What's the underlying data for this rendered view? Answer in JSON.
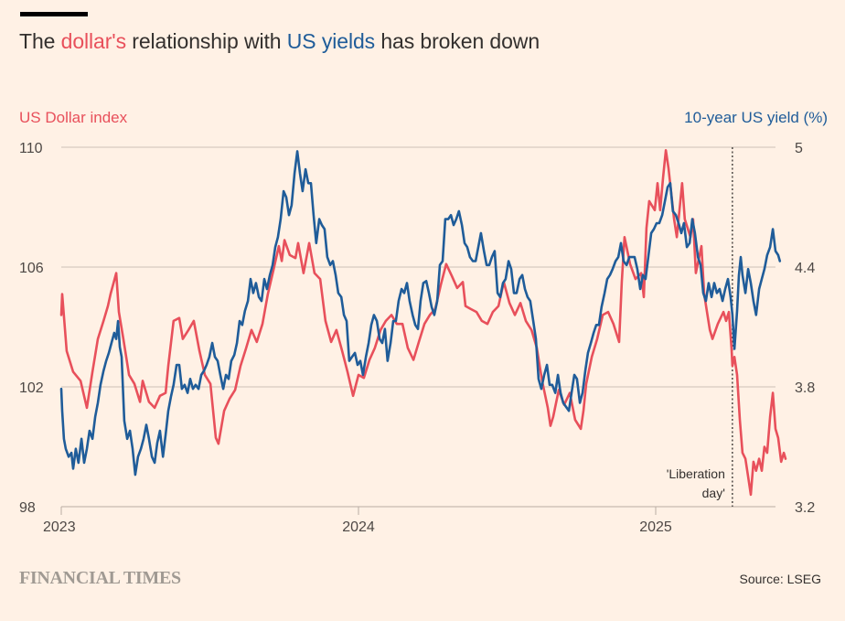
{
  "title": {
    "prefix": "The ",
    "highlight1": "dollar's",
    "middle": " relationship with ",
    "highlight2": "US yields",
    "suffix": " has broken down"
  },
  "footer": {
    "brand": "FINANCIAL TIMES",
    "source": "Source: LSEG"
  },
  "colors": {
    "background": "#FFF1E5",
    "dollar": "#E8505B",
    "yield": "#1F5C99",
    "text": "#33302E",
    "grid": "#CCC1B7"
  },
  "chart_data": {
    "type": "line",
    "title": "The dollar's relationship with US yields has broken down",
    "xlabel": "",
    "x_ticks": [
      "2023",
      "2024",
      "2025"
    ],
    "x_tick_values": [
      2023,
      2024,
      2025
    ],
    "xlim": [
      2023,
      2025.44
    ],
    "y_left": {
      "label": "US Dollar index",
      "ylim": [
        98,
        110
      ],
      "ticks": [
        "110",
        "106",
        "102",
        "98"
      ],
      "tick_values": [
        110,
        106,
        102,
        98
      ]
    },
    "y_right": {
      "label": "10-year US yield (%)",
      "ylim": [
        3.2,
        5
      ],
      "ticks": [
        "5",
        "4.4",
        "3.8",
        "3.2"
      ],
      "tick_values": [
        5,
        4.4,
        3.8,
        3.2
      ]
    },
    "grid": true,
    "annotations": [
      {
        "text_line1": "'Liberation",
        "text_line2": "day'",
        "x": 2025.255,
        "style": "dotted-vertical-line"
      }
    ],
    "series": [
      {
        "name": "US Dollar index",
        "axis": "left",
        "x": [
          2023.0,
          2023.003,
          2023.018,
          2023.04,
          2023.065,
          2023.086,
          2023.105,
          2023.123,
          2023.142,
          2023.157,
          2023.166,
          2023.185,
          2023.194,
          2023.209,
          2023.228,
          2023.246,
          2023.265,
          2023.274,
          2023.295,
          2023.314,
          2023.332,
          2023.351,
          2023.36,
          2023.378,
          2023.397,
          2023.409,
          2023.428,
          2023.446,
          2023.465,
          2023.483,
          2023.502,
          2023.52,
          2023.529,
          2023.548,
          2023.566,
          2023.585,
          2023.603,
          2023.622,
          2023.64,
          2023.658,
          2023.677,
          2023.695,
          2023.714,
          2023.732,
          2023.742,
          2023.751,
          2023.769,
          2023.788,
          2023.797,
          2023.815,
          2023.834,
          2023.852,
          2023.871,
          2023.889,
          2023.908,
          2023.926,
          2023.945,
          2023.963,
          2023.982,
          2024.0,
          2024.018,
          2024.037,
          2024.055,
          2024.074,
          2024.092,
          2024.111,
          2024.129,
          2024.148,
          2024.166,
          2024.185,
          2024.203,
          2024.222,
          2024.24,
          2024.258,
          2024.277,
          2024.295,
          2024.314,
          2024.332,
          2024.351,
          2024.36,
          2024.378,
          2024.397,
          2024.415,
          2024.434,
          2024.452,
          2024.471,
          2024.489,
          2024.508,
          2024.526,
          2024.545,
          2024.563,
          2024.582,
          2024.6,
          2024.618,
          2024.637,
          2024.646,
          2024.655,
          2024.674,
          2024.692,
          2024.711,
          2024.729,
          2024.748,
          2024.757,
          2024.766,
          2024.785,
          2024.803,
          2024.822,
          2024.84,
          2024.858,
          2024.877,
          2024.886,
          2024.895,
          2024.914,
          2024.932,
          2024.951,
          2024.96,
          2024.969,
          2024.978,
          2024.997,
          2025.006,
          2025.015,
          2025.025,
          2025.034,
          2025.043,
          2025.062,
          2025.071,
          2025.089,
          2025.098,
          2025.117,
          2025.126,
          2025.135,
          2025.154,
          2025.163,
          2025.182,
          2025.191,
          2025.209,
          2025.228,
          2025.237,
          2025.246,
          2025.255,
          2025.258,
          2025.265,
          2025.274,
          2025.283,
          2025.292,
          2025.302,
          2025.311,
          2025.32,
          2025.329,
          2025.338,
          2025.348,
          2025.357,
          2025.366,
          2025.375,
          2025.385,
          2025.394,
          2025.403,
          2025.412,
          2025.422,
          2025.431,
          2025.437
        ],
        "values": [
          104.4,
          105.1,
          103.2,
          102.5,
          102.2,
          101.3,
          102.5,
          103.6,
          104.2,
          104.7,
          105.1,
          105.8,
          104.5,
          103.6,
          102.4,
          102.1,
          101.5,
          102.2,
          101.5,
          101.3,
          101.7,
          101.8,
          102.7,
          104.2,
          104.3,
          103.6,
          103.9,
          104.2,
          103.2,
          102.4,
          102.1,
          100.3,
          100.1,
          101.2,
          101.6,
          101.9,
          102.7,
          103.3,
          103.9,
          103.5,
          104.1,
          105.1,
          105.9,
          106.7,
          106.2,
          106.9,
          106.4,
          106.3,
          106.8,
          105.8,
          106.8,
          105.8,
          105.6,
          104.2,
          103.5,
          103.9,
          103.2,
          102.5,
          101.7,
          102.4,
          102.3,
          102.9,
          103.3,
          103.9,
          104.2,
          104.4,
          104.1,
          104.1,
          103.3,
          102.9,
          103.5,
          104.1,
          104.4,
          104.6,
          105.4,
          106.1,
          105.7,
          105.3,
          105.5,
          104.7,
          104.6,
          104.5,
          104.2,
          104.1,
          104.5,
          104.7,
          105.5,
          104.8,
          104.4,
          104.8,
          104.2,
          103.9,
          103.3,
          102.2,
          101.3,
          100.7,
          101.0,
          101.9,
          101.4,
          101.8,
          100.9,
          100.6,
          101.2,
          102.1,
          103.0,
          103.6,
          104.4,
          104.5,
          104.1,
          103.5,
          105.5,
          107.0,
          106.1,
          105.6,
          105.8,
          105.0,
          107.3,
          108.2,
          107.9,
          108.8,
          107.9,
          109.0,
          109.9,
          109.3,
          107.6,
          107.0,
          108.8,
          107.6,
          107.0,
          107.6,
          105.8,
          106.7,
          105.1,
          103.9,
          103.6,
          104.1,
          104.5,
          104.2,
          104.5,
          103.3,
          102.7,
          103.0,
          102.4,
          100.9,
          99.8,
          99.6,
          99.0,
          98.4,
          99.5,
          99.2,
          99.6,
          99.2,
          100.0,
          99.8,
          101.0,
          101.8,
          100.6,
          100.3,
          99.5,
          99.8,
          99.6
        ]
      },
      {
        "name": "10-year US yield (%)",
        "axis": "right",
        "x": [
          2023.0,
          2023.003,
          2023.009,
          2023.015,
          2023.025,
          2023.034,
          2023.04,
          2023.049,
          2023.058,
          2023.068,
          2023.077,
          2023.086,
          2023.095,
          2023.105,
          2023.114,
          2023.123,
          2023.132,
          2023.142,
          2023.151,
          2023.16,
          2023.169,
          2023.178,
          2023.185,
          2023.191,
          2023.197,
          2023.203,
          2023.212,
          2023.222,
          2023.231,
          2023.24,
          2023.249,
          2023.258,
          2023.268,
          2023.277,
          2023.286,
          2023.295,
          2023.305,
          2023.314,
          2023.323,
          2023.332,
          2023.342,
          2023.351,
          2023.36,
          2023.369,
          2023.378,
          2023.388,
          2023.397,
          2023.406,
          2023.415,
          2023.425,
          2023.434,
          2023.443,
          2023.452,
          2023.462,
          2023.471,
          2023.48,
          2023.489,
          2023.498,
          2023.508,
          2023.517,
          2023.526,
          2023.535,
          2023.545,
          2023.554,
          2023.563,
          2023.572,
          2023.582,
          2023.591,
          2023.6,
          2023.609,
          2023.618,
          2023.628,
          2023.637,
          2023.646,
          2023.655,
          2023.665,
          2023.674,
          2023.683,
          2023.692,
          2023.702,
          2023.711,
          2023.72,
          2023.729,
          2023.738,
          2023.748,
          2023.757,
          2023.766,
          2023.775,
          2023.785,
          2023.794,
          2023.803,
          2023.812,
          2023.822,
          2023.831,
          2023.84,
          2023.849,
          2023.858,
          2023.868,
          2023.877,
          2023.886,
          2023.895,
          2023.905,
          2023.914,
          2023.923,
          2023.932,
          2023.942,
          2023.951,
          2023.96,
          2023.969,
          2023.978,
          2023.988,
          2023.997,
          2024.006,
          2024.015,
          2024.025,
          2024.034,
          2024.043,
          2024.052,
          2024.062,
          2024.071,
          2024.08,
          2024.089,
          2024.098,
          2024.108,
          2024.117,
          2024.126,
          2024.135,
          2024.145,
          2024.154,
          2024.163,
          2024.172,
          2024.182,
          2024.191,
          2024.2,
          2024.209,
          2024.218,
          2024.228,
          2024.237,
          2024.246,
          2024.255,
          2024.265,
          2024.274,
          2024.283,
          2024.292,
          2024.302,
          2024.311,
          2024.32,
          2024.329,
          2024.338,
          2024.348,
          2024.357,
          2024.366,
          2024.375,
          2024.385,
          2024.394,
          2024.403,
          2024.412,
          2024.422,
          2024.431,
          2024.44,
          2024.449,
          2024.458,
          2024.468,
          2024.477,
          2024.486,
          2024.495,
          2024.505,
          2024.514,
          2024.523,
          2024.532,
          2024.542,
          2024.551,
          2024.56,
          2024.569,
          2024.578,
          2024.588,
          2024.597,
          2024.606,
          2024.615,
          2024.625,
          2024.634,
          2024.643,
          2024.652,
          2024.662,
          2024.671,
          2024.68,
          2024.689,
          2024.698,
          2024.708,
          2024.717,
          2024.726,
          2024.735,
          2024.745,
          2024.754,
          2024.763,
          2024.772,
          2024.782,
          2024.791,
          2024.8,
          2024.809,
          2024.818,
          2024.828,
          2024.837,
          2024.846,
          2024.855,
          2024.865,
          2024.874,
          2024.883,
          2024.892,
          2024.902,
          2024.911,
          2024.92,
          2024.929,
          2024.938,
          2024.948,
          2024.957,
          2024.966,
          2024.975,
          2024.985,
          2024.994,
          2025.003,
          2025.012,
          2025.022,
          2025.031,
          2025.04,
          2025.049,
          2025.058,
          2025.068,
          2025.077,
          2025.086,
          2025.095,
          2025.105,
          2025.114,
          2025.123,
          2025.132,
          2025.142,
          2025.151,
          2025.16,
          2025.169,
          2025.178,
          2025.188,
          2025.197,
          2025.206,
          2025.215,
          2025.225,
          2025.234,
          2025.243,
          2025.252,
          2025.258,
          2025.265,
          2025.274,
          2025.28,
          2025.286,
          2025.292,
          2025.302,
          2025.311,
          2025.32,
          2025.329,
          2025.338,
          2025.348,
          2025.357,
          2025.366,
          2025.375,
          2025.385,
          2025.394,
          2025.403,
          2025.412,
          2025.418
        ],
        "values": [
          3.79,
          3.68,
          3.54,
          3.49,
          3.45,
          3.47,
          3.39,
          3.49,
          3.42,
          3.54,
          3.42,
          3.49,
          3.58,
          3.54,
          3.65,
          3.72,
          3.81,
          3.88,
          3.93,
          3.97,
          4.02,
          4.07,
          4.04,
          4.13,
          4.0,
          3.95,
          3.63,
          3.54,
          3.58,
          3.49,
          3.36,
          3.45,
          3.49,
          3.54,
          3.61,
          3.54,
          3.45,
          3.42,
          3.52,
          3.58,
          3.45,
          3.56,
          3.68,
          3.75,
          3.81,
          3.91,
          3.91,
          3.79,
          3.81,
          3.77,
          3.84,
          3.79,
          3.81,
          3.79,
          3.86,
          3.88,
          3.91,
          3.95,
          4.02,
          3.95,
          3.93,
          3.86,
          3.79,
          3.86,
          3.84,
          3.93,
          3.96,
          4.02,
          4.13,
          4.11,
          4.18,
          4.23,
          4.34,
          4.27,
          4.32,
          4.25,
          4.23,
          4.34,
          4.29,
          4.36,
          4.41,
          4.5,
          4.55,
          4.64,
          4.78,
          4.75,
          4.66,
          4.71,
          4.87,
          4.98,
          4.87,
          4.78,
          4.89,
          4.82,
          4.82,
          4.66,
          4.52,
          4.64,
          4.61,
          4.59,
          4.45,
          4.41,
          4.43,
          4.36,
          4.27,
          4.25,
          4.16,
          4.13,
          3.93,
          3.95,
          3.97,
          3.91,
          3.93,
          3.86,
          3.95,
          4.02,
          4.11,
          4.16,
          4.13,
          4.04,
          4.02,
          4.09,
          3.93,
          4.02,
          4.13,
          4.13,
          4.23,
          4.29,
          4.27,
          4.32,
          4.23,
          4.16,
          4.11,
          4.09,
          4.23,
          4.32,
          4.33,
          4.27,
          4.2,
          4.16,
          4.23,
          4.41,
          4.43,
          4.64,
          4.64,
          4.66,
          4.61,
          4.64,
          4.68,
          4.61,
          4.52,
          4.5,
          4.45,
          4.43,
          4.43,
          4.5,
          4.57,
          4.48,
          4.41,
          4.41,
          4.45,
          4.48,
          4.27,
          4.25,
          4.32,
          4.34,
          4.43,
          4.39,
          4.27,
          4.27,
          4.34,
          4.36,
          4.29,
          4.25,
          4.23,
          4.13,
          4.04,
          3.84,
          3.79,
          3.86,
          3.91,
          3.81,
          3.81,
          3.77,
          3.86,
          3.77,
          3.72,
          3.7,
          3.68,
          3.77,
          3.86,
          3.84,
          3.72,
          3.77,
          3.88,
          3.97,
          4.02,
          4.07,
          4.11,
          4.11,
          4.2,
          4.27,
          4.34,
          4.36,
          4.39,
          4.43,
          4.45,
          4.52,
          4.43,
          4.41,
          4.45,
          4.45,
          4.45,
          4.39,
          4.29,
          4.36,
          4.34,
          4.45,
          4.57,
          4.59,
          4.62,
          4.62,
          4.66,
          4.73,
          4.8,
          4.82,
          4.68,
          4.66,
          4.62,
          4.57,
          4.62,
          4.5,
          4.52,
          4.64,
          4.57,
          4.45,
          4.41,
          4.27,
          4.23,
          4.32,
          4.25,
          4.32,
          4.27,
          4.29,
          4.23,
          4.29,
          4.34,
          4.25,
          4.16,
          3.99,
          4.18,
          4.36,
          4.45,
          4.36,
          4.27,
          4.39,
          4.32,
          4.23,
          4.16,
          4.29,
          4.34,
          4.39,
          4.46,
          4.5,
          4.59,
          4.48,
          4.46,
          4.43
        ]
      }
    ]
  }
}
